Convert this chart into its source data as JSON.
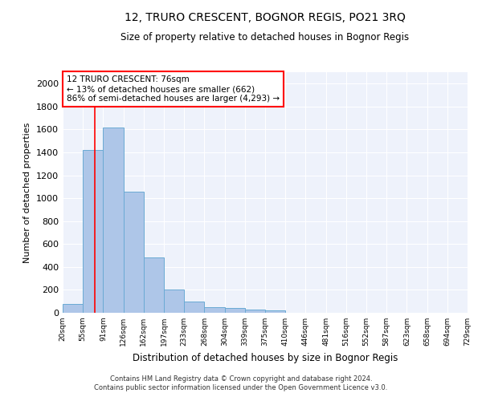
{
  "title": "12, TRURO CRESCENT, BOGNOR REGIS, PO21 3RQ",
  "subtitle": "Size of property relative to detached houses in Bognor Regis",
  "xlabel": "Distribution of detached houses by size in Bognor Regis",
  "ylabel": "Number of detached properties",
  "bar_color": "#aec6e8",
  "bar_edge_color": "#6aaad4",
  "background_color": "#eef2fb",
  "grid_color": "#ffffff",
  "bin_labels": [
    "20sqm",
    "55sqm",
    "91sqm",
    "126sqm",
    "162sqm",
    "197sqm",
    "233sqm",
    "268sqm",
    "304sqm",
    "339sqm",
    "375sqm",
    "410sqm",
    "446sqm",
    "481sqm",
    "516sqm",
    "552sqm",
    "587sqm",
    "623sqm",
    "658sqm",
    "694sqm",
    "729sqm"
  ],
  "bar_values": [
    80,
    1420,
    1620,
    1055,
    480,
    205,
    100,
    50,
    40,
    25,
    20,
    0,
    0,
    0,
    0,
    0,
    0,
    0,
    0,
    0
  ],
  "ylim": [
    0,
    2100
  ],
  "yticks": [
    0,
    200,
    400,
    600,
    800,
    1000,
    1200,
    1400,
    1600,
    1800,
    2000
  ],
  "annotation_title": "12 TRURO CRESCENT: 76sqm",
  "annotation_line1": "← 13% of detached houses are smaller (662)",
  "annotation_line2": "86% of semi-detached houses are larger (4,293) →",
  "vline_bin": 1.58,
  "footer_line1": "Contains HM Land Registry data © Crown copyright and database right 2024.",
  "footer_line2": "Contains public sector information licensed under the Open Government Licence v3.0."
}
